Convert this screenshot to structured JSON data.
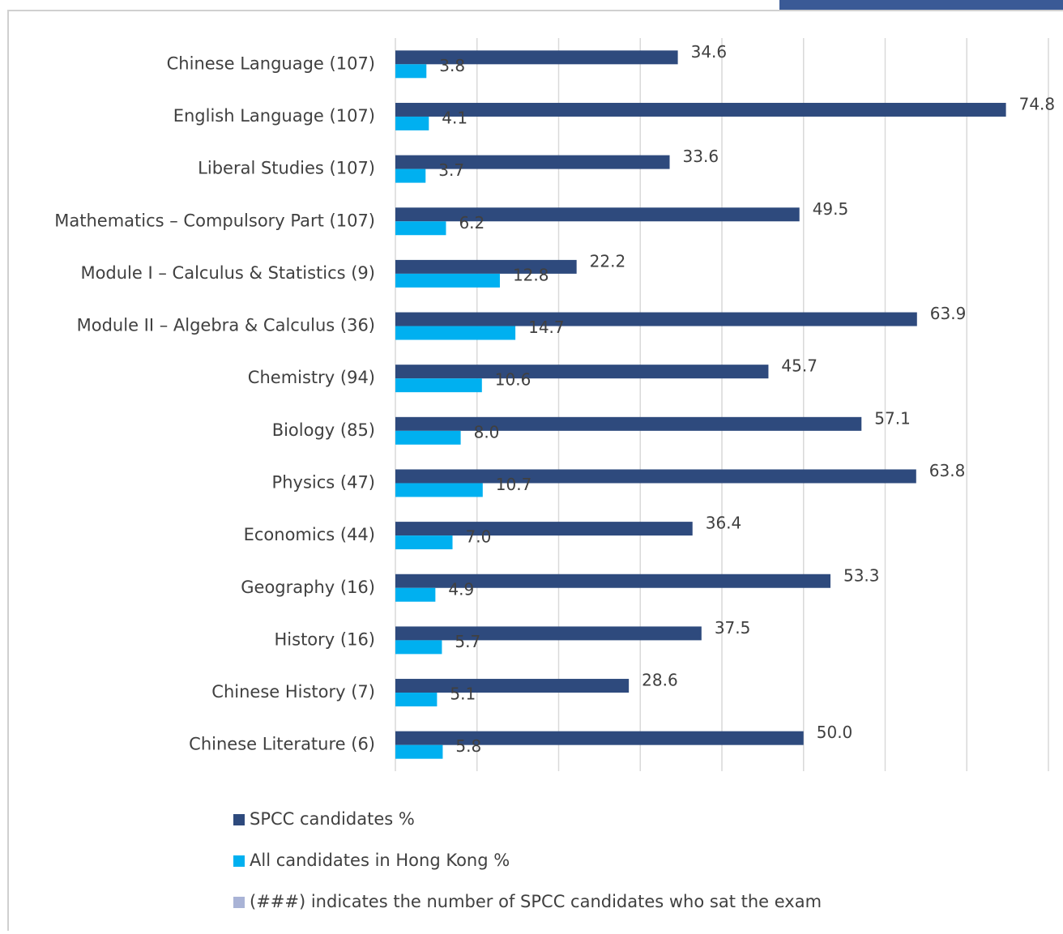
{
  "chart_data": {
    "type": "hbar",
    "categories": [
      "Chinese Language (107)",
      "English Language (107)",
      "Liberal Studies (107)",
      "Mathematics – Compulsory Part (107)",
      "Module I – Calculus & Statistics (9)",
      "Module II – Algebra & Calculus (36)",
      "Chemistry (94)",
      "Biology (85)",
      "Physics (47)",
      "Economics (44)",
      "Geography (16)",
      "History (16)",
      "Chinese History (7)",
      "Chinese Literature (6)"
    ],
    "series": [
      {
        "name": "SPCC candidates %",
        "color": "#2e4a7d",
        "values": [
          34.6,
          74.8,
          33.6,
          49.5,
          22.2,
          63.9,
          45.7,
          57.1,
          63.8,
          36.4,
          53.3,
          37.5,
          28.6,
          50.0
        ],
        "value_labels": [
          "34.6",
          "74.8",
          "33.6",
          "49.5",
          "22.2",
          "63.9",
          "45.7",
          "57.1",
          "63.8",
          "36.4",
          "53.3",
          "37.5",
          "28.6",
          "50.0"
        ]
      },
      {
        "name": "All candidates in Hong Kong %",
        "color": "#00b0f0",
        "values": [
          3.8,
          4.1,
          3.7,
          6.2,
          12.8,
          14.7,
          10.6,
          8.0,
          10.7,
          7.0,
          4.9,
          5.7,
          5.1,
          5.8
        ],
        "value_labels": [
          "3.8",
          "4.1",
          "3.7",
          "6.2",
          "12.8",
          "14.7",
          "10.6",
          "8.0",
          "10.7",
          "7.0",
          "4.9",
          "5.7",
          "5.1",
          "5.8"
        ]
      }
    ],
    "legend_note": {
      "text": "(###) indicates the number of SPCC candidates who sat the exam",
      "color": "#a9b3d6"
    },
    "xlim": [
      0,
      80
    ],
    "xticks": [
      0,
      10,
      20,
      30,
      40,
      50,
      60,
      70,
      80
    ],
    "grid": true
  }
}
